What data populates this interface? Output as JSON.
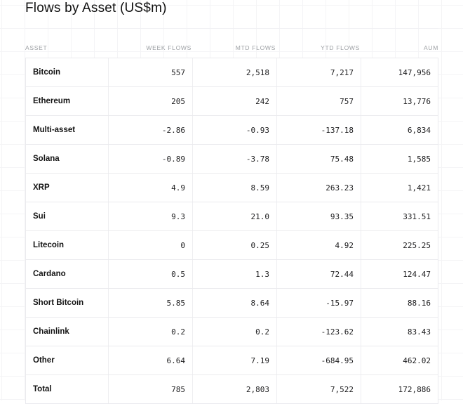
{
  "title": "Flows by Asset (US$m)",
  "table": {
    "columns": [
      "ASSET",
      "WEEK FLOWS",
      "MTD FLOWS",
      "YTD FLOWS",
      "AUM"
    ],
    "rows": [
      {
        "asset": "Bitcoin",
        "week": "557",
        "mtd": "2,518",
        "ytd": "7,217",
        "aum": "147,956"
      },
      {
        "asset": "Ethereum",
        "week": "205",
        "mtd": "242",
        "ytd": "757",
        "aum": "13,776"
      },
      {
        "asset": "Multi-asset",
        "week": "-2.86",
        "mtd": "-0.93",
        "ytd": "-137.18",
        "aum": "6,834"
      },
      {
        "asset": "Solana",
        "week": "-0.89",
        "mtd": "-3.78",
        "ytd": "75.48",
        "aum": "1,585"
      },
      {
        "asset": "XRP",
        "week": "4.9",
        "mtd": "8.59",
        "ytd": "263.23",
        "aum": "1,421"
      },
      {
        "asset": "Sui",
        "week": "9.3",
        "mtd": "21.0",
        "ytd": "93.35",
        "aum": "331.51"
      },
      {
        "asset": "Litecoin",
        "week": "0",
        "mtd": "0.25",
        "ytd": "4.92",
        "aum": "225.25"
      },
      {
        "asset": "Cardano",
        "week": "0.5",
        "mtd": "1.3",
        "ytd": "72.44",
        "aum": "124.47"
      },
      {
        "asset": "Short Bitcoin",
        "week": "5.85",
        "mtd": "8.64",
        "ytd": "-15.97",
        "aum": "88.16"
      },
      {
        "asset": "Chainlink",
        "week": "0.2",
        "mtd": "0.2",
        "ytd": "-123.62",
        "aum": "83.43"
      },
      {
        "asset": "Other",
        "week": "6.64",
        "mtd": "7.19",
        "ytd": "-684.95",
        "aum": "462.02"
      },
      {
        "asset": "Total",
        "week": "785",
        "mtd": "2,803",
        "ytd": "7,522",
        "aum": "172,886"
      }
    ]
  },
  "chart_data": {
    "type": "table",
    "title": "Flows by Asset (US$m)",
    "columns": [
      "Asset",
      "Week Flows",
      "MTD Flows",
      "YTD Flows",
      "AUM"
    ],
    "categories": [
      "Bitcoin",
      "Ethereum",
      "Multi-asset",
      "Solana",
      "XRP",
      "Sui",
      "Litecoin",
      "Cardano",
      "Short Bitcoin",
      "Chainlink",
      "Other",
      "Total"
    ],
    "series": [
      {
        "name": "Week Flows",
        "values": [
          557,
          205,
          -2.86,
          -0.89,
          4.9,
          9.3,
          0,
          0.5,
          5.85,
          0.2,
          6.64,
          785
        ]
      },
      {
        "name": "MTD Flows",
        "values": [
          2518,
          242,
          -0.93,
          -3.78,
          8.59,
          21.0,
          0.25,
          1.3,
          8.64,
          0.2,
          7.19,
          2803
        ]
      },
      {
        "name": "YTD Flows",
        "values": [
          7217,
          757,
          -137.18,
          75.48,
          263.23,
          93.35,
          4.92,
          72.44,
          -15.97,
          -123.62,
          -684.95,
          7522
        ]
      },
      {
        "name": "AUM",
        "values": [
          147956,
          13776,
          6834,
          1585,
          1421,
          331.51,
          225.25,
          124.47,
          88.16,
          83.43,
          462.02,
          172886
        ]
      }
    ],
    "units": "US$m"
  },
  "colors": {
    "background": "#ffffff",
    "grid_line": "#f4f4f6",
    "table_border": "#eaeaee",
    "header_text": "#9da0a4",
    "body_text": "#1d1d1f",
    "title_text": "#121212"
  }
}
